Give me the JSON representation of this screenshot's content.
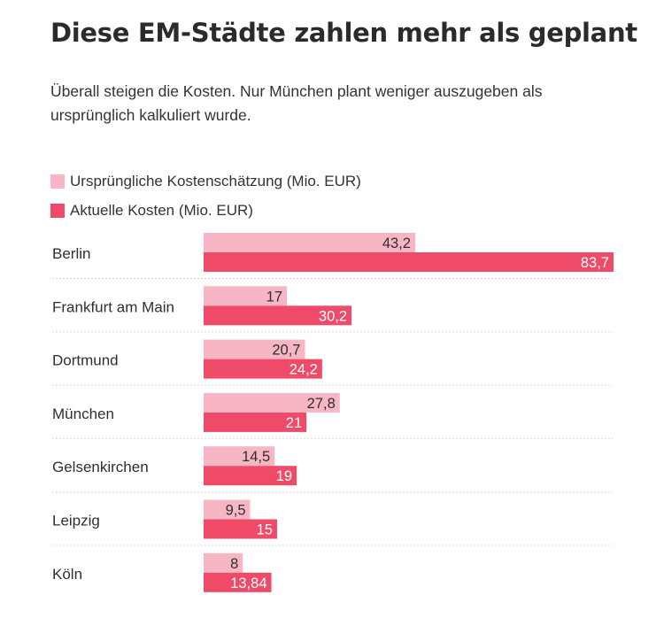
{
  "title": "Diese EM-Städte zahlen mehr als geplant",
  "subtitle": "Überall steigen die Kosten. Nur München plant weniger auszugeben als ursprünglich kalkuliert wurde.",
  "colors": {
    "original": "#f7b6c3",
    "current": "#ef4b68",
    "separator": "#cfcfcf",
    "text": "#2f2f2f"
  },
  "chart_data": {
    "type": "bar",
    "orientation": "horizontal",
    "grid": false,
    "legend_placement": "top-left",
    "categories": [
      "Berlin",
      "Frankfurt am Main",
      "Dortmund",
      "München",
      "Gelsenkirchen",
      "Leipzig",
      "Köln"
    ],
    "series": [
      {
        "name": "Ursprüngliche Kostenschätzung (Mio. EUR)",
        "values": [
          43.2,
          17,
          20.7,
          27.8,
          14.5,
          9.5,
          8
        ],
        "labels": [
          "43,2",
          "17",
          "20,7",
          "27,8",
          "14,5",
          "9,5",
          "8"
        ]
      },
      {
        "name": "Aktuelle Kosten (Mio. EUR)",
        "values": [
          83.7,
          30.2,
          24.2,
          21,
          19,
          15,
          13.84
        ],
        "labels": [
          "83,7",
          "30,2",
          "24,2",
          "21",
          "19",
          "15",
          "13,84"
        ]
      }
    ],
    "xlim": [
      0,
      83.7
    ]
  }
}
